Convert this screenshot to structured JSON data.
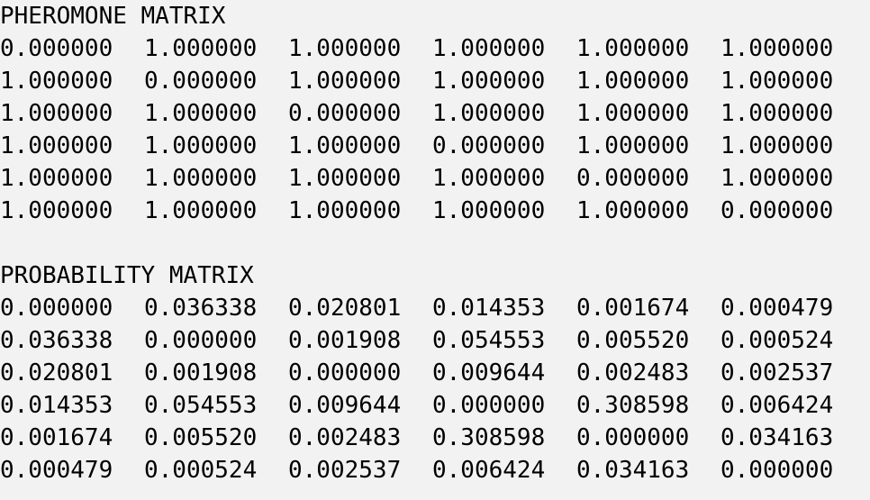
{
  "console": {
    "pheromone_title": "PHEROMONE MATRIX",
    "pheromone_rows": [
      [
        "0.000000",
        "1.000000",
        "1.000000",
        "1.000000",
        "1.000000",
        "1.000000"
      ],
      [
        "1.000000",
        "0.000000",
        "1.000000",
        "1.000000",
        "1.000000",
        "1.000000"
      ],
      [
        "1.000000",
        "1.000000",
        "0.000000",
        "1.000000",
        "1.000000",
        "1.000000"
      ],
      [
        "1.000000",
        "1.000000",
        "1.000000",
        "0.000000",
        "1.000000",
        "1.000000"
      ],
      [
        "1.000000",
        "1.000000",
        "1.000000",
        "1.000000",
        "0.000000",
        "1.000000"
      ],
      [
        "1.000000",
        "1.000000",
        "1.000000",
        "1.000000",
        "1.000000",
        "0.000000"
      ]
    ],
    "probability_title": "PROBABILITY MATRIX",
    "probability_rows": [
      [
        "0.000000",
        "0.036338",
        "0.020801",
        "0.014353",
        "0.001674",
        "0.000479"
      ],
      [
        "0.036338",
        "0.000000",
        "0.001908",
        "0.054553",
        "0.005520",
        "0.000524"
      ],
      [
        "0.020801",
        "0.001908",
        "0.000000",
        "0.009644",
        "0.002483",
        "0.002537"
      ],
      [
        "0.014353",
        "0.054553",
        "0.009644",
        "0.000000",
        "0.308598",
        "0.006424"
      ],
      [
        "0.001674",
        "0.005520",
        "0.002483",
        "0.308598",
        "0.000000",
        "0.034163"
      ],
      [
        "0.000479",
        "0.000524",
        "0.002537",
        "0.006424",
        "0.034163",
        "0.000000"
      ]
    ]
  }
}
